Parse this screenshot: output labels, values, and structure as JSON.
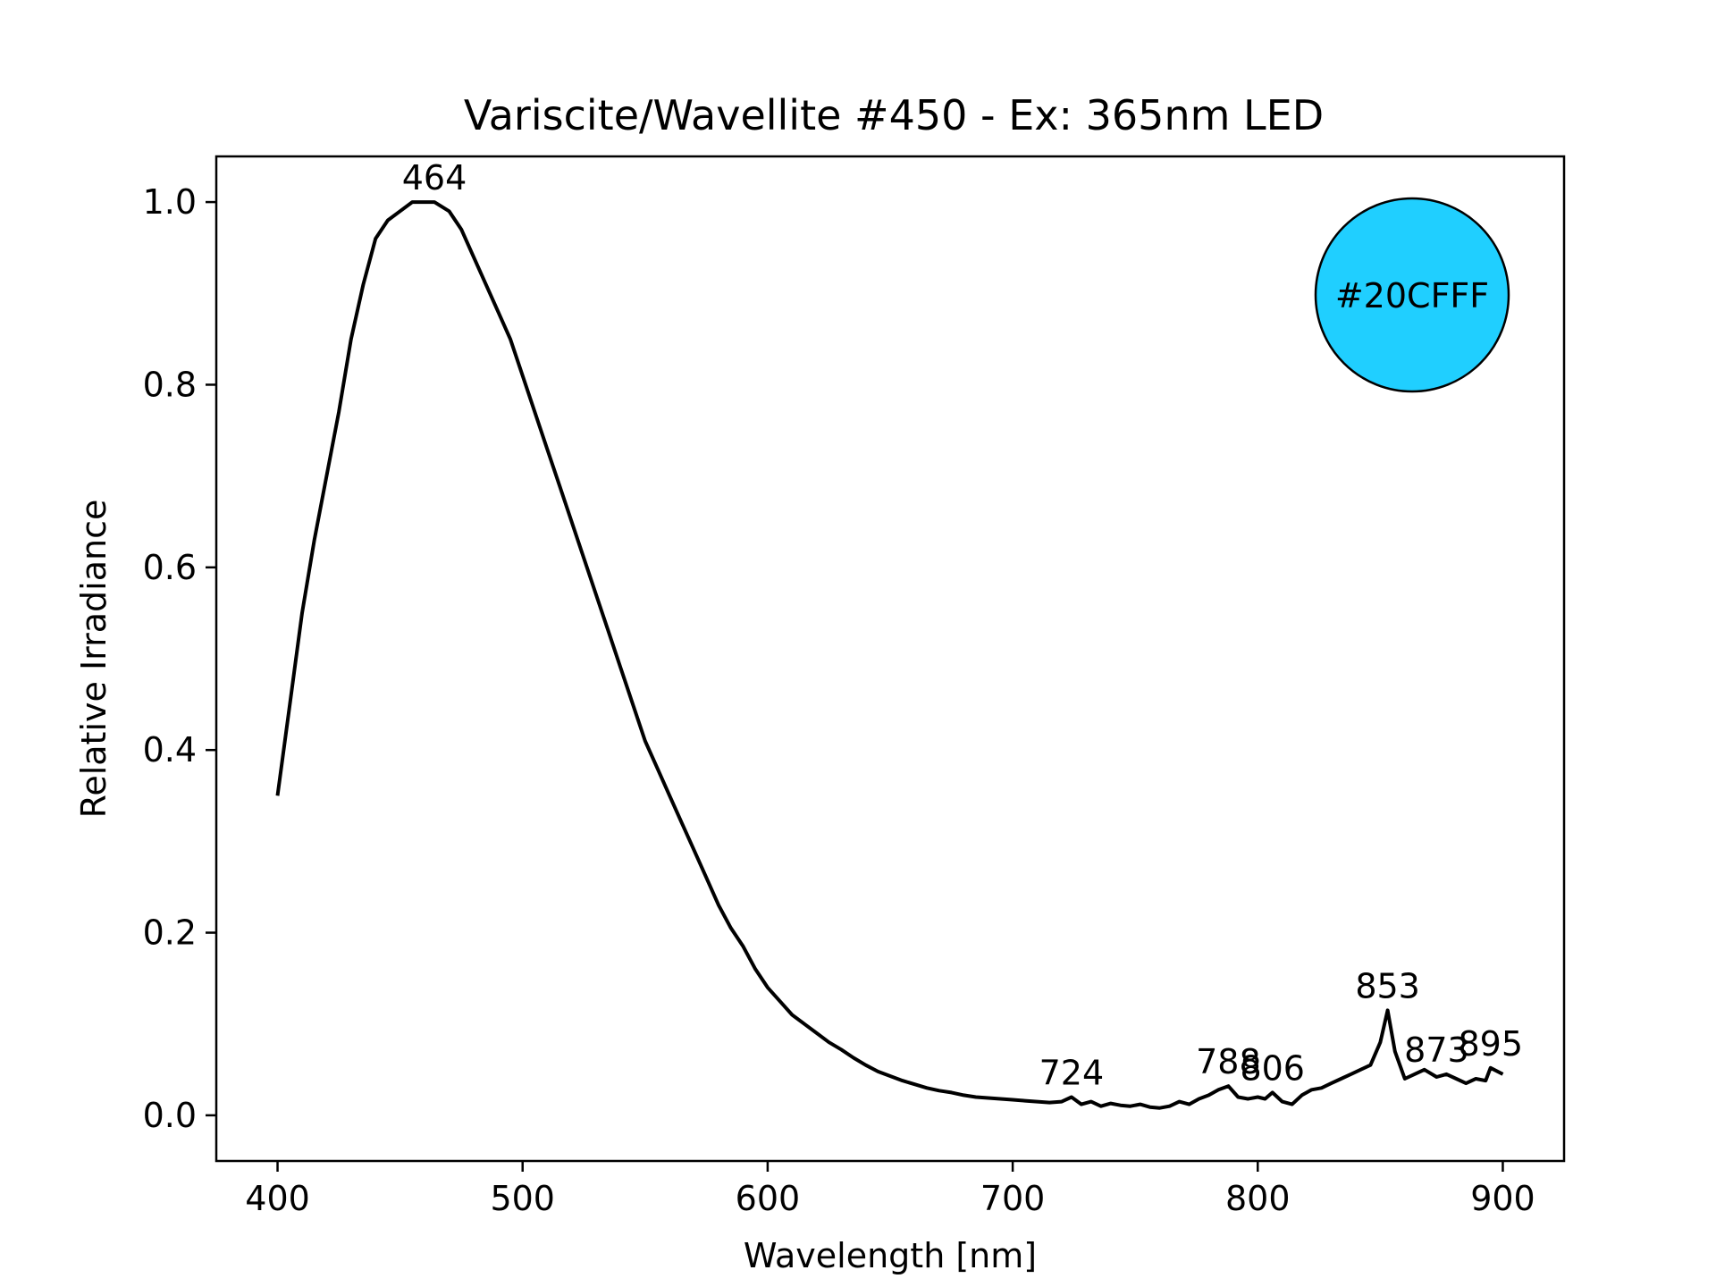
{
  "chart_data": {
    "type": "line",
    "title": "Variscite/Wavellite #450 - Ex: 365nm LED",
    "xlabel": "Wavelength [nm]",
    "ylabel": "Relative Irradiance",
    "xlim": [
      375,
      925
    ],
    "ylim": [
      -0.05,
      1.05
    ],
    "xticks": [
      400,
      500,
      600,
      700,
      800,
      900
    ],
    "yticks": [
      0.0,
      0.2,
      0.4,
      0.6,
      0.8,
      1.0
    ],
    "xtick_labels": [
      "400",
      "500",
      "600",
      "700",
      "800",
      "900"
    ],
    "ytick_labels": [
      "0.0",
      "0.2",
      "0.4",
      "0.6",
      "0.8",
      "1.0"
    ],
    "grid": false,
    "line_color": "#000000",
    "series": [
      {
        "x": [
          400,
          405,
          410,
          415,
          420,
          425,
          430,
          435,
          440,
          445,
          450,
          455,
          460,
          464,
          470,
          475,
          480,
          485,
          490,
          495,
          500,
          505,
          510,
          515,
          520,
          525,
          530,
          535,
          540,
          545,
          550,
          555,
          560,
          565,
          570,
          575,
          580,
          585,
          590,
          595,
          600,
          605,
          610,
          615,
          620,
          625,
          630,
          635,
          640,
          645,
          650,
          655,
          660,
          665,
          670,
          675,
          680,
          685,
          690,
          695,
          700,
          705,
          710,
          715,
          720,
          724,
          728,
          732,
          736,
          740,
          744,
          748,
          752,
          756,
          760,
          764,
          768,
          772,
          776,
          780,
          784,
          788,
          792,
          796,
          800,
          803,
          806,
          810,
          814,
          818,
          822,
          826,
          830,
          834,
          838,
          842,
          846,
          850,
          853,
          856,
          860,
          864,
          868,
          873,
          877,
          881,
          885,
          889,
          893,
          895,
          900
        ],
        "values": [
          0.35,
          0.45,
          0.55,
          0.63,
          0.7,
          0.77,
          0.85,
          0.91,
          0.96,
          0.98,
          0.99,
          1.0,
          1.0,
          1.0,
          0.99,
          0.97,
          0.94,
          0.91,
          0.88,
          0.85,
          0.81,
          0.77,
          0.73,
          0.69,
          0.65,
          0.61,
          0.57,
          0.53,
          0.49,
          0.45,
          0.41,
          0.38,
          0.35,
          0.32,
          0.29,
          0.26,
          0.23,
          0.205,
          0.185,
          0.16,
          0.14,
          0.125,
          0.11,
          0.1,
          0.09,
          0.08,
          0.072,
          0.063,
          0.055,
          0.048,
          0.043,
          0.038,
          0.034,
          0.03,
          0.027,
          0.025,
          0.022,
          0.02,
          0.019,
          0.018,
          0.017,
          0.016,
          0.015,
          0.014,
          0.015,
          0.02,
          0.012,
          0.015,
          0.01,
          0.013,
          0.011,
          0.01,
          0.012,
          0.009,
          0.008,
          0.01,
          0.015,
          0.012,
          0.018,
          0.022,
          0.028,
          0.032,
          0.02,
          0.018,
          0.02,
          0.018,
          0.025,
          0.015,
          0.012,
          0.022,
          0.028,
          0.03,
          0.035,
          0.04,
          0.045,
          0.05,
          0.055,
          0.08,
          0.115,
          0.07,
          0.04,
          0.045,
          0.05,
          0.042,
          0.045,
          0.04,
          0.035,
          0.04,
          0.038,
          0.052,
          0.045
        ]
      }
    ],
    "annotations": [
      {
        "text": "464",
        "x": 464,
        "y": 1.0
      },
      {
        "text": "724",
        "x": 724,
        "y": 0.02
      },
      {
        "text": "788",
        "x": 788,
        "y": 0.032
      },
      {
        "text": "806",
        "x": 806,
        "y": 0.025
      },
      {
        "text": "853",
        "x": 853,
        "y": 0.115
      },
      {
        "text": "873",
        "x": 873,
        "y": 0.045
      },
      {
        "text": "895",
        "x": 895,
        "y": 0.052
      }
    ],
    "color_swatch": {
      "label": "#20CFFF",
      "fill": "#20CFFF",
      "position": "top-right"
    }
  }
}
